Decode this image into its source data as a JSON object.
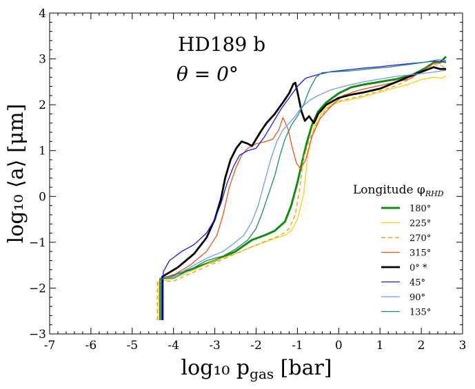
{
  "chart_data": {
    "type": "line",
    "title": "",
    "xlabel": "log₁₀ p",
    "xlabel_sub": "gas",
    "xlabel_unit": " [bar]",
    "ylabel": "log₁₀ ⟨a⟩ [μm]",
    "xlim": [
      -7,
      3
    ],
    "ylim": [
      -3,
      4
    ],
    "xticks": [
      -7,
      -6,
      -5,
      -4,
      -3,
      -2,
      -1,
      0,
      1,
      2,
      3
    ],
    "yticks": [
      -3,
      -2,
      -1,
      0,
      1,
      2,
      3,
      4
    ],
    "xtick_labels": [
      "-7",
      "-6",
      "-5",
      "-4",
      "-3",
      "-2",
      "-1",
      "0",
      "1",
      "2",
      "3"
    ],
    "ytick_labels": [
      "−3",
      "−2",
      "−1",
      "0",
      "1",
      "2",
      "3",
      "4"
    ],
    "grid": false,
    "annotations": [
      "HD189 b",
      "θ = 0°"
    ],
    "legend": {
      "title": "Longitude φ",
      "title_sub": "RHD",
      "position": "lower-right"
    },
    "series": [
      {
        "name": "180°",
        "color": "#138a13",
        "width": 3,
        "dash": "",
        "points": [
          [
            -4.32,
            -2.7
          ],
          [
            -4.32,
            -1.8
          ],
          [
            -4.1,
            -1.75
          ],
          [
            -3.6,
            -1.6
          ],
          [
            -3.0,
            -1.4
          ],
          [
            -2.5,
            -1.2
          ],
          [
            -2.1,
            -0.95
          ],
          [
            -1.8,
            -0.85
          ],
          [
            -1.55,
            -0.75
          ],
          [
            -1.3,
            -0.55
          ],
          [
            -1.15,
            -0.2
          ],
          [
            -1.0,
            0.3
          ],
          [
            -0.9,
            0.7
          ],
          [
            -0.78,
            1.15
          ],
          [
            -0.65,
            1.55
          ],
          [
            -0.5,
            1.85
          ],
          [
            -0.3,
            2.05
          ],
          [
            0.0,
            2.25
          ],
          [
            0.3,
            2.38
          ],
          [
            0.6,
            2.44
          ],
          [
            1.0,
            2.5
          ],
          [
            1.4,
            2.56
          ],
          [
            1.8,
            2.66
          ],
          [
            2.1,
            2.8
          ],
          [
            2.3,
            2.92
          ],
          [
            2.45,
            2.92
          ],
          [
            2.6,
            3.05
          ]
        ]
      },
      {
        "name": "225°",
        "color": "#f5d40f",
        "width": 1.3,
        "dash": "",
        "points": [
          [
            -4.36,
            -2.7
          ],
          [
            -4.36,
            -1.85
          ],
          [
            -4.0,
            -1.8
          ],
          [
            -3.5,
            -1.6
          ],
          [
            -3.0,
            -1.4
          ],
          [
            -2.5,
            -1.25
          ],
          [
            -2.1,
            -1.1
          ],
          [
            -1.8,
            -1.0
          ],
          [
            -1.5,
            -0.9
          ],
          [
            -1.3,
            -0.85
          ],
          [
            -1.15,
            -0.75
          ],
          [
            -1.0,
            -0.5
          ],
          [
            -0.85,
            0.05
          ],
          [
            -0.75,
            0.9
          ],
          [
            -0.6,
            1.5
          ],
          [
            -0.4,
            1.85
          ],
          [
            -0.2,
            2.0
          ],
          [
            0.1,
            2.08
          ],
          [
            0.5,
            2.15
          ],
          [
            0.9,
            2.25
          ],
          [
            1.3,
            2.35
          ],
          [
            1.7,
            2.45
          ],
          [
            2.0,
            2.55
          ],
          [
            2.3,
            2.6
          ],
          [
            2.5,
            2.58
          ],
          [
            2.6,
            2.63
          ]
        ]
      },
      {
        "name": "270°",
        "color": "#f0a020",
        "width": 1.4,
        "dash": "6,4",
        "points": [
          [
            -4.39,
            -2.7
          ],
          [
            -4.39,
            -1.85
          ],
          [
            -4.0,
            -1.85
          ],
          [
            -3.5,
            -1.65
          ],
          [
            -3.0,
            -1.45
          ],
          [
            -2.5,
            -1.25
          ],
          [
            -2.1,
            -1.1
          ],
          [
            -1.7,
            -0.95
          ],
          [
            -1.4,
            -0.85
          ],
          [
            -1.2,
            -0.7
          ],
          [
            -1.05,
            -0.4
          ],
          [
            -0.95,
            0.15
          ],
          [
            -0.85,
            0.85
          ],
          [
            -0.7,
            1.25
          ],
          [
            -0.55,
            1.55
          ],
          [
            -0.35,
            1.85
          ],
          [
            -0.1,
            2.05
          ],
          [
            0.2,
            2.12
          ],
          [
            0.6,
            2.2
          ],
          [
            1.0,
            2.3
          ],
          [
            1.4,
            2.42
          ],
          [
            1.8,
            2.6
          ],
          [
            2.1,
            2.78
          ],
          [
            2.3,
            2.88
          ],
          [
            2.5,
            2.85
          ],
          [
            2.6,
            2.78
          ]
        ]
      },
      {
        "name": "315°",
        "color": "#e8541c",
        "width": 1.3,
        "dash": "",
        "points": [
          [
            -4.3,
            -2.7
          ],
          [
            -4.3,
            -1.78
          ],
          [
            -4.0,
            -1.72
          ],
          [
            -3.6,
            -1.5
          ],
          [
            -3.2,
            -1.2
          ],
          [
            -2.95,
            -0.85
          ],
          [
            -2.8,
            -0.4
          ],
          [
            -2.65,
            0.2
          ],
          [
            -2.5,
            0.6
          ],
          [
            -2.35,
            0.9
          ],
          [
            -2.2,
            1.05
          ],
          [
            -2.0,
            1.15
          ],
          [
            -1.75,
            1.2
          ],
          [
            -1.6,
            1.25
          ],
          [
            -1.45,
            1.45
          ],
          [
            -1.35,
            1.72
          ],
          [
            -1.22,
            1.45
          ],
          [
            -1.12,
            1.05
          ],
          [
            -1.02,
            0.72
          ],
          [
            -0.92,
            0.6
          ],
          [
            -0.8,
            0.8
          ],
          [
            -0.65,
            1.3
          ],
          [
            -0.45,
            1.7
          ],
          [
            -0.2,
            1.95
          ],
          [
            0.1,
            2.2
          ],
          [
            0.5,
            2.32
          ],
          [
            0.9,
            2.4
          ],
          [
            1.3,
            2.48
          ],
          [
            1.7,
            2.56
          ],
          [
            2.0,
            2.72
          ],
          [
            2.3,
            2.9
          ],
          [
            2.5,
            2.93
          ],
          [
            2.6,
            2.92
          ]
        ]
      },
      {
        "name": "0° *",
        "color": "#000000",
        "width": 2.8,
        "dash": "",
        "points": [
          [
            -4.27,
            -2.7
          ],
          [
            -4.27,
            -1.75
          ],
          [
            -3.9,
            -1.55
          ],
          [
            -3.5,
            -1.25
          ],
          [
            -3.2,
            -0.9
          ],
          [
            -3.0,
            -0.5
          ],
          [
            -2.85,
            -0.05
          ],
          [
            -2.75,
            0.4
          ],
          [
            -2.62,
            0.8
          ],
          [
            -2.48,
            1.05
          ],
          [
            -2.35,
            1.2
          ],
          [
            -2.2,
            1.15
          ],
          [
            -2.1,
            1.1
          ],
          [
            -2.0,
            1.25
          ],
          [
            -1.9,
            1.4
          ],
          [
            -1.75,
            1.6
          ],
          [
            -1.55,
            1.8
          ],
          [
            -1.35,
            2.05
          ],
          [
            -1.2,
            2.25
          ],
          [
            -1.1,
            2.45
          ],
          [
            -1.05,
            2.48
          ],
          [
            -0.98,
            2.2
          ],
          [
            -0.9,
            1.85
          ],
          [
            -0.82,
            1.65
          ],
          [
            -0.72,
            1.75
          ],
          [
            -0.6,
            1.6
          ],
          [
            -0.5,
            1.8
          ],
          [
            -0.3,
            2.0
          ],
          [
            0.0,
            2.15
          ],
          [
            0.3,
            2.22
          ],
          [
            0.6,
            2.27
          ],
          [
            1.0,
            2.35
          ],
          [
            1.4,
            2.5
          ],
          [
            1.8,
            2.65
          ],
          [
            2.1,
            2.75
          ],
          [
            2.3,
            2.82
          ],
          [
            2.45,
            2.78
          ],
          [
            2.6,
            2.78
          ]
        ]
      },
      {
        "name": "45°",
        "color": "#1a1ad6",
        "width": 1.3,
        "dash": "",
        "points": [
          [
            -4.25,
            -2.7
          ],
          [
            -4.25,
            -1.65
          ],
          [
            -4.1,
            -1.4
          ],
          [
            -3.8,
            -1.2
          ],
          [
            -3.5,
            -1.05
          ],
          [
            -3.2,
            -0.8
          ],
          [
            -3.0,
            -0.5
          ],
          [
            -2.85,
            -0.15
          ],
          [
            -2.7,
            0.3
          ],
          [
            -2.55,
            0.65
          ],
          [
            -2.4,
            0.9
          ],
          [
            -2.2,
            1.0
          ],
          [
            -2.0,
            1.05
          ],
          [
            -1.8,
            1.3
          ],
          [
            -1.6,
            1.6
          ],
          [
            -1.4,
            1.9
          ],
          [
            -1.2,
            2.15
          ],
          [
            -1.0,
            2.4
          ],
          [
            -0.8,
            2.58
          ],
          [
            -0.5,
            2.66
          ],
          [
            -0.2,
            2.72
          ],
          [
            0.2,
            2.76
          ],
          [
            0.6,
            2.8
          ],
          [
            1.0,
            2.83
          ],
          [
            1.5,
            2.88
          ],
          [
            2.0,
            2.92
          ],
          [
            2.3,
            2.95
          ],
          [
            2.5,
            2.94
          ],
          [
            2.6,
            2.93
          ]
        ]
      },
      {
        "name": "90°",
        "color": "#6f9be6",
        "width": 1.3,
        "dash": "",
        "points": [
          [
            -4.3,
            -2.7
          ],
          [
            -4.3,
            -1.8
          ],
          [
            -4.0,
            -1.75
          ],
          [
            -3.6,
            -1.55
          ],
          [
            -3.2,
            -1.35
          ],
          [
            -2.8,
            -1.2
          ],
          [
            -2.5,
            -1.0
          ],
          [
            -2.3,
            -0.85
          ],
          [
            -2.1,
            -0.55
          ],
          [
            -1.95,
            -0.2
          ],
          [
            -1.8,
            0.3
          ],
          [
            -1.65,
            0.8
          ],
          [
            -1.5,
            1.2
          ],
          [
            -1.35,
            1.45
          ],
          [
            -1.2,
            1.6
          ],
          [
            -1.05,
            1.75
          ],
          [
            -0.9,
            1.95
          ],
          [
            -0.7,
            2.1
          ],
          [
            -0.5,
            2.2
          ],
          [
            -0.2,
            2.32
          ],
          [
            0.2,
            2.42
          ],
          [
            0.6,
            2.5
          ],
          [
            1.0,
            2.56
          ],
          [
            1.4,
            2.62
          ],
          [
            1.8,
            2.66
          ],
          [
            2.2,
            2.7
          ],
          [
            2.5,
            2.74
          ],
          [
            2.6,
            2.75
          ]
        ]
      },
      {
        "name": "135°",
        "color": "#1f8474",
        "width": 1.3,
        "dash": "",
        "points": [
          [
            -4.33,
            -2.7
          ],
          [
            -4.33,
            -1.8
          ],
          [
            -4.0,
            -1.78
          ],
          [
            -3.6,
            -1.6
          ],
          [
            -3.2,
            -1.4
          ],
          [
            -2.8,
            -1.3
          ],
          [
            -2.5,
            -1.15
          ],
          [
            -2.2,
            -0.95
          ],
          [
            -2.0,
            -0.7
          ],
          [
            -1.85,
            -0.35
          ],
          [
            -1.7,
            0.05
          ],
          [
            -1.55,
            0.45
          ],
          [
            -1.42,
            0.9
          ],
          [
            -1.3,
            1.25
          ],
          [
            -1.15,
            1.55
          ],
          [
            -1.0,
            1.75
          ],
          [
            -0.85,
            2.0
          ],
          [
            -0.7,
            2.35
          ],
          [
            -0.55,
            2.6
          ],
          [
            -0.4,
            2.7
          ],
          [
            -0.1,
            2.72
          ],
          [
            0.3,
            2.74
          ],
          [
            0.7,
            2.78
          ],
          [
            1.2,
            2.82
          ],
          [
            1.7,
            2.88
          ],
          [
            2.1,
            2.93
          ],
          [
            2.4,
            2.98
          ],
          [
            2.6,
            2.96
          ]
        ]
      }
    ]
  }
}
